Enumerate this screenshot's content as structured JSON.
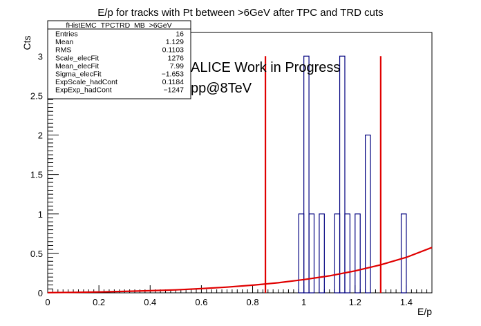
{
  "chart_data": {
    "type": "histogram",
    "title": "E/p for tracks with Pt between >6GeV after TPC and TRD cuts",
    "xlabel": "E/p",
    "ylabel": "Cts",
    "xlim": [
      0,
      1.5
    ],
    "ylim": [
      0,
      3.3
    ],
    "x_ticks": [
      "0",
      "0.2",
      "0.4",
      "0.6",
      "0.8",
      "1",
      "1.2",
      "1.4"
    ],
    "x_tick_values": [
      0,
      0.2,
      0.4,
      0.6,
      0.8,
      1.0,
      1.2,
      1.4
    ],
    "y_ticks": [
      "0",
      "0.5",
      "1",
      "1.5",
      "2",
      "2.5",
      "3"
    ],
    "y_tick_values": [
      0,
      0.5,
      1,
      1.5,
      2,
      2.5,
      3
    ],
    "bin_width": 0.02,
    "bins": [
      {
        "x": 0.98,
        "y": 1
      },
      {
        "x": 1.0,
        "y": 3
      },
      {
        "x": 1.02,
        "y": 1
      },
      {
        "x": 1.06,
        "y": 1
      },
      {
        "x": 1.12,
        "y": 1
      },
      {
        "x": 1.14,
        "y": 3
      },
      {
        "x": 1.16,
        "y": 1
      },
      {
        "x": 1.2,
        "y": 1
      },
      {
        "x": 1.24,
        "y": 2
      },
      {
        "x": 1.38,
        "y": 1
      }
    ],
    "cut_lines": [
      0.85,
      1.3
    ],
    "fit_curve": {
      "x": [
        0,
        0.1,
        0.2,
        0.3,
        0.4,
        0.5,
        0.6,
        0.7,
        0.8,
        0.9,
        1.0,
        1.1,
        1.2,
        1.3,
        1.4,
        1.5
      ],
      "y": [
        0.0026,
        0.0063,
        0.011,
        0.018,
        0.027,
        0.038,
        0.053,
        0.073,
        0.097,
        0.128,
        0.168,
        0.215,
        0.278,
        0.355,
        0.45,
        0.575
      ]
    },
    "colors": {
      "histogram": "#00007f",
      "fit": "#e00000",
      "cut_lines": "#e00000"
    },
    "annotations": [
      "ALICE Work in Progress",
      "pp@8TeV"
    ],
    "stats_box": {
      "title": "fHistEMC_TPCTRD_MB_>6GeV",
      "rows": [
        {
          "label": "Entries",
          "value": "16"
        },
        {
          "label": "Mean",
          "value": "1.129"
        },
        {
          "label": "RMS",
          "value": "0.1103"
        },
        {
          "label": "Scale_elecFit",
          "value": "1276"
        },
        {
          "label": "Mean_elecFit",
          "value": "7.99"
        },
        {
          "label": "Sigma_elecFit",
          "value": "−1.653"
        },
        {
          "label": "ExpScale_hadCont",
          "value": "0.1184"
        },
        {
          "label": "ExpExp_hadCont",
          "value": "−1247"
        }
      ]
    }
  }
}
